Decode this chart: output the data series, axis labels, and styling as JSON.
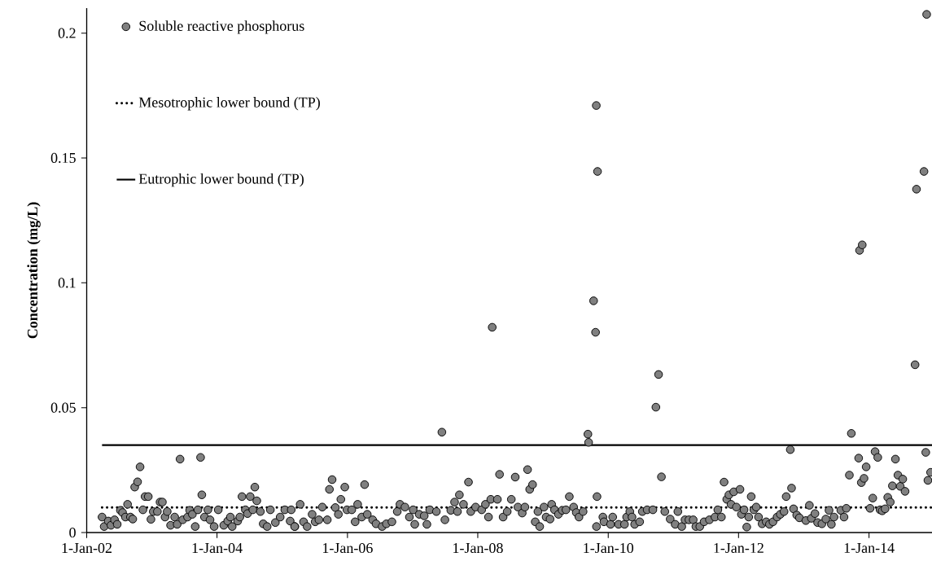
{
  "chart_data": {
    "type": "scatter",
    "ylabel": "Concentration (mg/L)",
    "xlim": [
      "2002-01-01",
      "2014-12-20"
    ],
    "ylim": [
      0,
      0.21
    ],
    "xticks": [
      {
        "value": "2002-01-01",
        "label": "1-Jan-02"
      },
      {
        "value": "2004-01-01",
        "label": "1-Jan-04"
      },
      {
        "value": "2006-01-01",
        "label": "1-Jan-06"
      },
      {
        "value": "2008-01-01",
        "label": "1-Jan-08"
      },
      {
        "value": "2010-01-01",
        "label": "1-Jan-10"
      },
      {
        "value": "2012-01-01",
        "label": "1-Jan-12"
      },
      {
        "value": "2014-01-01",
        "label": "1-Jan-14"
      }
    ],
    "yticks": [
      0,
      0.05,
      0.1,
      0.15,
      0.2
    ],
    "legend": "top left",
    "series": [
      {
        "name": "Soluble reactive phosphorus",
        "color": "#808080",
        "marker": "circle",
        "x": [
          "2002-03-28",
          "2002-04-09",
          "2002-05-02",
          "2002-05-17",
          "2002-06-06",
          "2002-06-21",
          "2002-07-09",
          "2002-07-21",
          "2002-08-06",
          "2002-08-18",
          "2002-09-03",
          "2002-09-16",
          "2002-09-27",
          "2002-10-13",
          "2002-10-27",
          "2002-11-12",
          "2002-11-24",
          "2002-12-12",
          "2002-12-27",
          "2003-01-09",
          "2003-02-01",
          "2003-02-16",
          "2003-03-01",
          "2003-03-16",
          "2003-03-28",
          "2003-04-16",
          "2003-05-09",
          "2003-05-23",
          "2003-06-08",
          "2003-06-23",
          "2003-07-20",
          "2003-08-01",
          "2003-08-16",
          "2003-09-01",
          "2003-09-16",
          "2003-10-01",
          "2003-10-08",
          "2003-10-23",
          "2003-11-11",
          "2003-11-23",
          "2003-12-16",
          "2004-01-08",
          "2004-02-08",
          "2004-03-01",
          "2004-03-16",
          "2004-03-26",
          "2004-04-26",
          "2004-05-08",
          "2004-05-20",
          "2004-06-08",
          "2004-06-20",
          "2004-07-05",
          "2004-07-20",
          "2004-07-31",
          "2004-08-11",
          "2004-08-31",
          "2004-09-16",
          "2004-10-08",
          "2004-10-26",
          "2004-11-23",
          "2004-12-20",
          "2005-01-15",
          "2005-02-14",
          "2005-03-12",
          "2005-02-20",
          "2005-03-11",
          "2005-04-11",
          "2005-04-30",
          "2005-05-20",
          "2005-06-17",
          "2005-07-04",
          "2005-07-25",
          "2005-08-13",
          "2005-09-10",
          "2005-09-22",
          "2005-10-07",
          "2005-10-25",
          "2005-11-11",
          "2005-11-25",
          "2005-12-17",
          "2005-12-29",
          "2006-01-25",
          "2006-02-13",
          "2006-02-27",
          "2006-03-22",
          "2006-04-07",
          "2006-04-22",
          "2006-05-22",
          "2006-06-10",
          "2006-07-14",
          "2006-08-07",
          "2006-09-07",
          "2006-10-07",
          "2006-10-22",
          "2006-11-19",
          "2006-12-14",
          "2007-01-04",
          "2007-01-13",
          "2007-02-07",
          "2007-03-07",
          "2007-03-22",
          "2007-04-07",
          "2007-05-14",
          "2007-06-14",
          "2007-07-01",
          "2007-08-03",
          "2007-08-24",
          "2007-09-09",
          "2007-09-20",
          "2007-10-13",
          "2007-11-10",
          "2007-11-23",
          "2007-12-20",
          "2008-01-23",
          "2008-02-13",
          "2008-03-01",
          "2008-03-14",
          "2008-03-22",
          "2008-04-20",
          "2008-05-02",
          "2008-05-22",
          "2008-06-14",
          "2008-07-07",
          "2008-07-29",
          "2008-08-13",
          "2008-09-06",
          "2008-09-21",
          "2008-10-06",
          "2008-10-18",
          "2008-11-03",
          "2008-11-18",
          "2008-12-03",
          "2008-12-13",
          "2009-01-06",
          "2009-01-18",
          "2009-02-09",
          "2009-02-18",
          "2009-03-06",
          "2009-03-28",
          "2009-04-18",
          "2009-05-09",
          "2009-05-28",
          "2009-06-21",
          "2009-07-06",
          "2009-07-21",
          "2009-08-13",
          "2009-09-09",
          "2009-09-13",
          "2009-10-22",
          "2009-10-26",
          "2009-11-02",
          "2009-10-11",
          "2009-10-30",
          "2009-10-27",
          "2009-12-02",
          "2009-12-08",
          "2010-01-14",
          "2010-01-26",
          "2010-02-28",
          "2010-04-02",
          "2010-04-14",
          "2010-05-02",
          "2010-05-14",
          "2010-05-29",
          "2010-06-26",
          "2010-07-11",
          "2010-08-07",
          "2010-09-08",
          "2010-09-25",
          "2010-10-10",
          "2010-10-26",
          "2010-11-14",
          "2010-12-14",
          "2011-01-11",
          "2011-01-26",
          "2011-02-17",
          "2011-03-07",
          "2011-03-29",
          "2011-04-22",
          "2011-05-07",
          "2011-05-29",
          "2011-06-22",
          "2011-07-22",
          "2011-08-22",
          "2011-09-07",
          "2011-09-27",
          "2011-10-12",
          "2011-10-27",
          "2011-11-08",
          "2011-11-20",
          "2011-12-05",
          "2011-12-20",
          "2012-01-09",
          "2012-01-17",
          "2012-02-01",
          "2012-02-16",
          "2012-02-27",
          "2012-03-12",
          "2012-03-27",
          "2012-04-09",
          "2012-04-22",
          "2012-05-12",
          "2012-06-04",
          "2012-06-22",
          "2012-07-12",
          "2012-08-04",
          "2012-08-22",
          "2012-09-12",
          "2012-09-24",
          "2012-10-17",
          "2012-10-24",
          "2012-11-04",
          "2012-11-22",
          "2012-12-07",
          "2013-01-12",
          "2013-02-01",
          "2013-02-12",
          "2013-03-04",
          "2013-03-19",
          "2013-04-12",
          "2013-05-04",
          "2013-05-22",
          "2013-06-04",
          "2013-06-19",
          "2013-07-27",
          "2013-08-14",
          "2013-08-27",
          "2013-09-13",
          "2013-09-24",
          "2013-11-04",
          "2013-11-09",
          "2013-11-24",
          "2013-11-19",
          "2013-12-04",
          "2013-12-16",
          "2014-01-07",
          "2014-01-22",
          "2014-02-04",
          "2014-02-19",
          "2014-03-04",
          "2014-03-16",
          "2014-04-01",
          "2014-04-16",
          "2014-04-30",
          "2014-05-12",
          "2014-05-29",
          "2014-06-12",
          "2014-06-25",
          "2014-07-09",
          "2014-07-22",
          "2014-09-16",
          "2014-09-24",
          "2014-11-05",
          "2014-11-15",
          "2014-11-20",
          "2014-11-27",
          "2014-12-12"
        ],
        "values": [
          0.0062,
          0.0024,
          0.0046,
          0.0029,
          0.0051,
          0.0033,
          0.0089,
          0.008,
          0.0062,
          0.0113,
          0.0062,
          0.0054,
          0.0182,
          0.0203,
          0.0263,
          0.0091,
          0.0144,
          0.0144,
          0.0053,
          0.0084,
          0.0084,
          0.0122,
          0.0122,
          0.0062,
          0.0084,
          0.0029,
          0.0062,
          0.0033,
          0.0294,
          0.0051,
          0.0062,
          0.0089,
          0.0073,
          0.0024,
          0.0091,
          0.0301,
          0.0151,
          0.0062,
          0.0091,
          0.0051,
          0.0024,
          0.0091,
          0.0029,
          0.0046,
          0.0062,
          0.0024,
          0.0046,
          0.0062,
          0.0144,
          0.0091,
          0.0076,
          0.0144,
          0.0091,
          0.0182,
          0.0127,
          0.0084,
          0.0035,
          0.0024,
          0.0091,
          0.004,
          0.0062,
          0.0091,
          0.0046,
          0.0024,
          0.0091,
          0.0024,
          0.0113,
          0.0043,
          0.0024,
          0.0073,
          0.0043,
          0.0051,
          0.0102,
          0.0051,
          0.0173,
          0.0212,
          0.01,
          0.0073,
          0.0133,
          0.0182,
          0.0091,
          0.0091,
          0.0043,
          0.0113,
          0.0062,
          0.0192,
          0.0073,
          0.0051,
          0.0035,
          0.0024,
          0.0035,
          0.0043,
          0.0084,
          0.0113,
          0.0102,
          0.0062,
          0.0091,
          0.0033,
          0.0073,
          0.0067,
          0.0033,
          0.0091,
          0.0084,
          0.0402,
          0.0051,
          0.0089,
          0.0122,
          0.0084,
          0.0151,
          0.0113,
          0.0202,
          0.0084,
          0.0102,
          0.0091,
          0.0113,
          0.0062,
          0.0133,
          0.0822,
          0.0133,
          0.0233,
          0.0062,
          0.0084,
          0.0133,
          0.0222,
          0.0102,
          0.0078,
          0.0102,
          0.0252,
          0.0173,
          0.0192,
          0.0043,
          0.0084,
          0.0024,
          0.0102,
          0.0062,
          0.0054,
          0.0113,
          0.0091,
          0.0073,
          0.0089,
          0.0091,
          0.0144,
          0.0102,
          0.008,
          0.0062,
          0.0084,
          0.0394,
          0.0361,
          0.0802,
          0.171,
          0.1446,
          0.0928,
          0.0144,
          0.0024,
          0.0062,
          0.0043,
          0.0033,
          0.0062,
          0.0033,
          0.0033,
          0.0062,
          0.0084,
          0.0062,
          0.0033,
          0.0043,
          0.0084,
          0.0091,
          0.0091,
          0.0502,
          0.0633,
          0.0223,
          0.0084,
          0.0054,
          0.0033,
          0.0084,
          0.0024,
          0.0051,
          0.0051,
          0.0051,
          0.0024,
          0.0024,
          0.0043,
          0.0051,
          0.0062,
          0.0091,
          0.0062,
          0.0202,
          0.0133,
          0.0151,
          0.0113,
          0.0163,
          0.0102,
          0.0173,
          0.0073,
          0.0091,
          0.0022,
          0.0062,
          0.0144,
          0.0091,
          0.0102,
          0.0062,
          0.0035,
          0.0043,
          0.0033,
          0.0043,
          0.0062,
          0.0073,
          0.0084,
          0.0144,
          0.0332,
          0.0178,
          0.0095,
          0.007,
          0.0059,
          0.0048,
          0.0109,
          0.0057,
          0.0076,
          0.004,
          0.0035,
          0.0054,
          0.0089,
          0.0033,
          0.0062,
          0.0089,
          0.0062,
          0.0097,
          0.023,
          0.0397,
          0.0298,
          0.113,
          0.1152,
          0.02,
          0.0217,
          0.0263,
          0.0097,
          0.0138,
          0.0324,
          0.0301,
          0.0091,
          0.0087,
          0.0095,
          0.0141,
          0.0122,
          0.0187,
          0.0294,
          0.023,
          0.0185,
          0.0214,
          0.0165,
          0.0672,
          0.1375,
          0.1446,
          0.0321,
          0.2075,
          0.0209,
          0.0241
        ]
      },
      {
        "name": "Mesotrophic lower bound (TP)",
        "type": "line",
        "color": "#000000",
        "line_style": "dotted",
        "marker": "none",
        "x": [
          "2002-03-28",
          "2014-12-20"
        ],
        "values": [
          0.01,
          0.01
        ]
      },
      {
        "name": "Eutrophic lower bound (TP)",
        "type": "line",
        "color": "#000000",
        "line_style": "solid",
        "marker": "none",
        "x": [
          "2002-03-28",
          "2014-12-20"
        ],
        "values": [
          0.035,
          0.035
        ]
      }
    ]
  }
}
